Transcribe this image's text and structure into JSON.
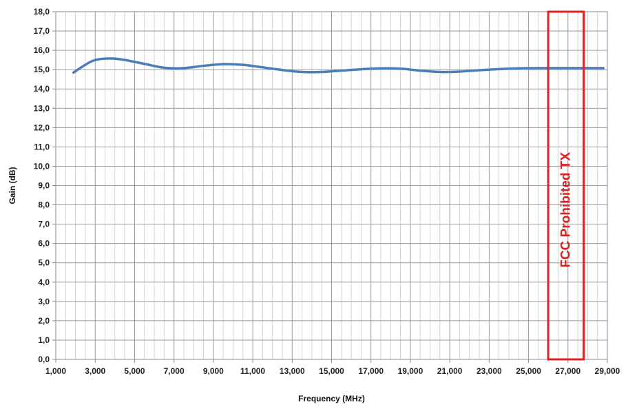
{
  "chart_data": {
    "type": "line",
    "title": "",
    "xlabel": "Frequency (MHz)",
    "ylabel": "Gain (dB)",
    "xlim": [
      1000,
      29000
    ],
    "ylim": [
      0,
      18
    ],
    "x_ticks": [
      1000,
      3000,
      5000,
      7000,
      9000,
      11000,
      13000,
      15000,
      17000,
      19000,
      21000,
      23000,
      25000,
      27000,
      29000
    ],
    "x_tick_labels": [
      "1,000",
      "3,000",
      "5,000",
      "7,000",
      "9,000",
      "11,000",
      "13,000",
      "15,000",
      "17,000",
      "19,000",
      "21,000",
      "23,000",
      "25,000",
      "27,000",
      "29,000"
    ],
    "y_ticks": [
      0,
      1,
      2,
      3,
      4,
      5,
      6,
      7,
      8,
      9,
      10,
      11,
      12,
      13,
      14,
      15,
      16,
      17,
      18
    ],
    "y_tick_labels": [
      "0,0",
      "1,0",
      "2,0",
      "3,0",
      "4,0",
      "5,0",
      "6,0",
      "7,0",
      "8,0",
      "9,0",
      "10,0",
      "11,0",
      "12,0",
      "13,0",
      "14,0",
      "15,0",
      "16,0",
      "17,0",
      "18,0"
    ],
    "grid": true,
    "minor_x_grid": true,
    "legend": "none",
    "series": [
      {
        "color": "#4a7ebb",
        "x": [
          1900,
          2500,
          3000,
          3800,
          4500,
          5500,
          6500,
          7500,
          8500,
          9500,
          10500,
          11500,
          12500,
          13500,
          14500,
          15500,
          16500,
          17500,
          18500,
          19500,
          20500,
          21500,
          22500,
          23500,
          24500,
          25500,
          26500,
          27500,
          28800
        ],
        "y": [
          14.85,
          15.25,
          15.5,
          15.58,
          15.5,
          15.3,
          15.1,
          15.08,
          15.2,
          15.28,
          15.25,
          15.12,
          14.98,
          14.88,
          14.88,
          14.95,
          15.02,
          15.07,
          15.05,
          14.95,
          14.88,
          14.9,
          14.97,
          15.03,
          15.07,
          15.08,
          15.08,
          15.08,
          15.08
        ]
      }
    ],
    "annotation": {
      "text": "FCC Prohibited TX",
      "x_range": [
        26000,
        27800
      ],
      "y_range": [
        0,
        18
      ],
      "color": "#e02020"
    }
  }
}
